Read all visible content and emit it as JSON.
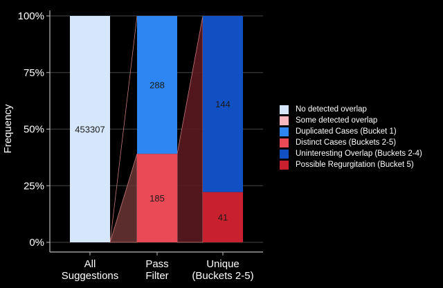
{
  "chart_data": {
    "type": "bar",
    "stacked": true,
    "normalized": true,
    "ylabel": "Frequency",
    "xlabel": "",
    "ylim": [
      0,
      100
    ],
    "y_ticks": [
      "0%",
      "25%",
      "50%",
      "75%",
      "100%"
    ],
    "y_tick_values": [
      0,
      25,
      50,
      75,
      100
    ],
    "categories": [
      "All\nSuggestions",
      "Pass\nFilter",
      "Unique\n(Buckets 2-5)"
    ],
    "bars": [
      {
        "category": "All Suggestions",
        "segments": [
          {
            "series": "No detected overlap",
            "count": 453307,
            "percent": 100
          }
        ]
      },
      {
        "category": "Pass Filter",
        "segments": [
          {
            "series": "Distinct Cases (Buckets 2-5)",
            "count": 185,
            "percent": 39.1
          },
          {
            "series": "Duplicated Cases (Bucket 1)",
            "count": 288,
            "percent": 60.9
          }
        ]
      },
      {
        "category": "Unique (Buckets 2-5)",
        "segments": [
          {
            "series": "Possible Regurgitation (Bucket 5)",
            "count": 41,
            "percent": 22.2
          },
          {
            "series": "Uninteresting Overlap (Buckets 2-4)",
            "count": 144,
            "percent": 77.8
          }
        ]
      }
    ],
    "legend": {
      "position": "right",
      "entries": [
        {
          "label": "No detected overlap",
          "color": "#d6e6fb"
        },
        {
          "label": "Some detected overlap",
          "color": "#f7b8bf"
        },
        {
          "label": "Duplicated Cases (Bucket 1)",
          "color": "#2e86f2"
        },
        {
          "label": "Distinct Cases (Buckets 2-5)",
          "color": "#ea4a55"
        },
        {
          "label": "Uninteresting Overlap (Buckets 2-4)",
          "color": "#1150c2"
        },
        {
          "label": "Possible Regurgitation (Bucket 5)",
          "color": "#c8202e"
        }
      ]
    },
    "grid": true
  }
}
